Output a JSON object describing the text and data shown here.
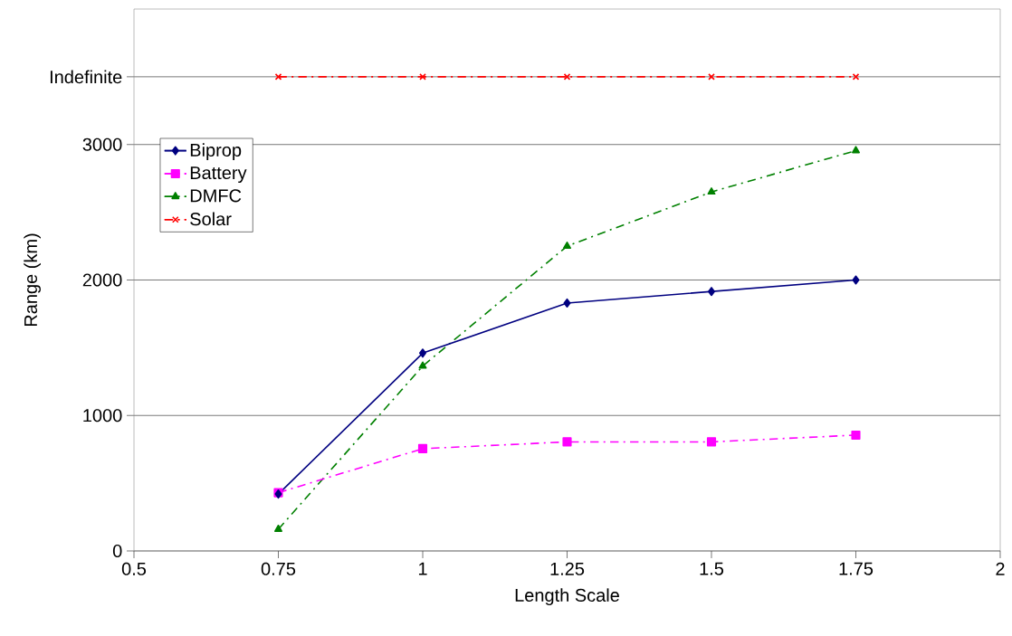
{
  "chart_data": {
    "type": "line",
    "xlabel": "Length Scale",
    "ylabel": "Range (km)",
    "x": [
      0.75,
      1,
      1.25,
      1.5,
      1.75
    ],
    "series": [
      {
        "name": "Biprop",
        "color": "#000080",
        "marker": "diamond",
        "line_style": "solid",
        "values": [
          420,
          1460,
          1830,
          1915,
          2000
        ]
      },
      {
        "name": "Battery",
        "color": "#ff00ff",
        "marker": "square",
        "line_style": "dashed",
        "values": [
          430,
          755,
          805,
          805,
          855
        ]
      },
      {
        "name": "DMFC",
        "color": "#008000",
        "marker": "triangle",
        "line_style": "dashed",
        "values": [
          160,
          1365,
          2250,
          2650,
          2955
        ]
      },
      {
        "name": "Solar",
        "color": "#ff0000",
        "marker": "cross",
        "line_style": "dashed",
        "values": [
          3500,
          3500,
          3500,
          3500,
          3500
        ]
      }
    ],
    "xlim": [
      0.5,
      2
    ],
    "xticks": [
      0.5,
      0.75,
      1,
      1.25,
      1.5,
      1.75,
      2
    ],
    "ylim": [
      0,
      4000
    ],
    "yticks": [
      0,
      1000,
      2000,
      3000,
      {
        "value": 3500,
        "label": "Indefinite"
      }
    ],
    "grid": "y",
    "legend": "left"
  }
}
